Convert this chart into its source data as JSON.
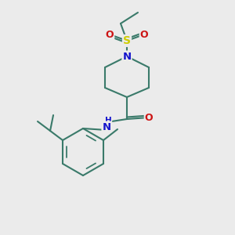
{
  "bg_color": "#ebebeb",
  "bond_color": "#3a7a6a",
  "bond_width": 1.5,
  "atom_colors": {
    "N": "#1414cc",
    "O": "#cc1414",
    "S": "#cccc00",
    "C": "#3a7a6a"
  },
  "font_size_atom": 8.5,
  "fig_size": [
    3.0,
    3.0
  ],
  "dpi": 100,
  "scale": 38
}
